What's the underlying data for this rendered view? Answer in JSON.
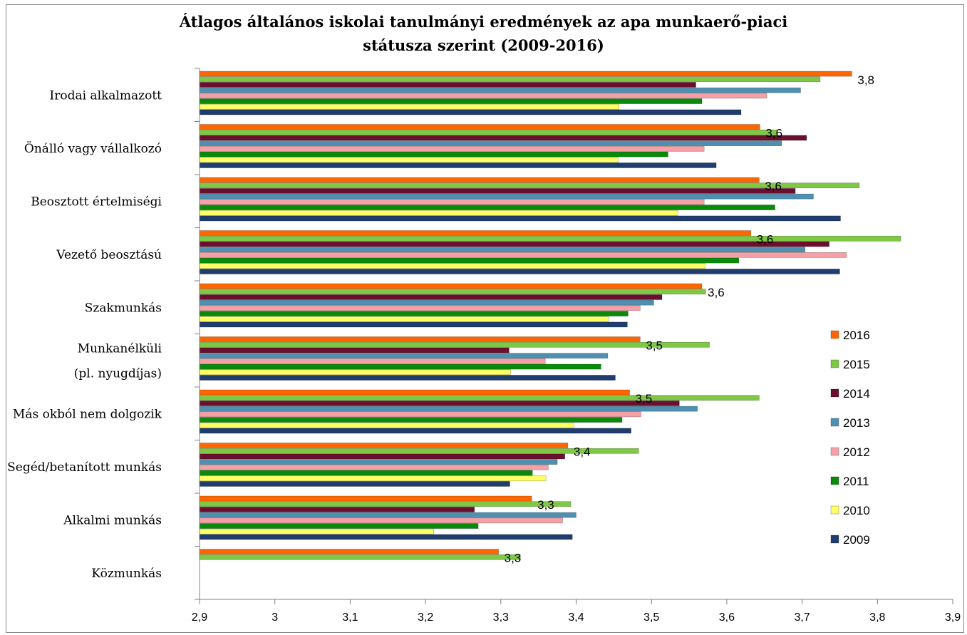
{
  "chart_data": {
    "type": "bar",
    "orientation": "horizontal",
    "title_lines": [
      "Átlagos általános iskolai tanulmányi eredmények az apa munkaerő-piaci",
      "státusza szerint (2009-2016)"
    ],
    "categories": [
      "Irodai alkalmazott",
      "Önálló vagy vállalkozó",
      "Beosztott értelmiségi",
      "Vezető beosztású",
      "Szakmunkás",
      "Munkanélküli (pl. nyugdíjas)",
      "Más okból nem dolgozik",
      "Segéd/betanított munkás",
      "Alkalmi munkás",
      "Közmunkás"
    ],
    "category_label_lines": [
      [
        "Irodai alkalmazott"
      ],
      [
        "Önálló vagy vállalkozó"
      ],
      [
        "Beosztott értelmiségi"
      ],
      [
        "Vezető beosztású"
      ],
      [
        "Szakmunkás"
      ],
      [
        "Munkanélküli",
        "(pl. nyugdíjas)"
      ],
      [
        "Más okból nem dolgozik"
      ],
      [
        "Segéd/betanított munkás"
      ],
      [
        "Alkalmi munkás"
      ],
      [
        "Közmunkás"
      ]
    ],
    "series": [
      {
        "name": "2016",
        "color": "#ff6600",
        "values": [
          3.766,
          3.644,
          3.643,
          3.632,
          3.567,
          3.485,
          3.471,
          3.389,
          3.341,
          3.297
        ]
      },
      {
        "name": "2015",
        "color": "#7ec845",
        "values": [
          3.724,
          3.667,
          3.776,
          3.831,
          3.572,
          3.577,
          3.643,
          3.483,
          3.393,
          3.326
        ]
      },
      {
        "name": "2014",
        "color": "#6b0f2e",
        "values": [
          3.559,
          3.706,
          3.691,
          3.736,
          3.514,
          3.311,
          3.537,
          3.385,
          3.265,
          null
        ]
      },
      {
        "name": "2013",
        "color": "#4f8fb0",
        "values": [
          3.698,
          3.673,
          3.715,
          3.704,
          3.503,
          3.442,
          3.561,
          3.375,
          3.4,
          null
        ]
      },
      {
        "name": "2012",
        "color": "#f4a0a6",
        "values": [
          3.653,
          3.57,
          3.57,
          3.759,
          3.485,
          3.359,
          3.486,
          3.363,
          3.382,
          null
        ]
      },
      {
        "name": "2011",
        "color": "#0a8a0a",
        "values": [
          3.567,
          3.522,
          3.664,
          3.616,
          3.469,
          3.433,
          3.461,
          3.342,
          3.27,
          null
        ]
      },
      {
        "name": "2010",
        "color": "#ffff66",
        "values": [
          3.457,
          3.456,
          3.535,
          3.571,
          3.443,
          3.313,
          3.397,
          3.36,
          3.211,
          null
        ]
      },
      {
        "name": "2009",
        "color": "#1f3d6e",
        "values": [
          3.619,
          3.586,
          3.751,
          3.75,
          3.468,
          3.452,
          3.473,
          3.312,
          3.395,
          null
        ]
      }
    ],
    "data_labels": [
      "3,8",
      "3,6",
      "3,6",
      "3,6",
      "3,6",
      "3,5",
      "3,5",
      "3,4",
      "3,3",
      "3,3"
    ],
    "xlim": [
      2.9,
      3.9
    ],
    "x_ticks": [
      "2,9",
      "3",
      "3,1",
      "3,2",
      "3,3",
      "3,4",
      "3,5",
      "3,6",
      "3,7",
      "3,8",
      "3,9"
    ],
    "x_tick_values": [
      2.9,
      3.0,
      3.1,
      3.2,
      3.3,
      3.4,
      3.5,
      3.6,
      3.7,
      3.8,
      3.9
    ],
    "legend_position": "right",
    "grid": false
  }
}
